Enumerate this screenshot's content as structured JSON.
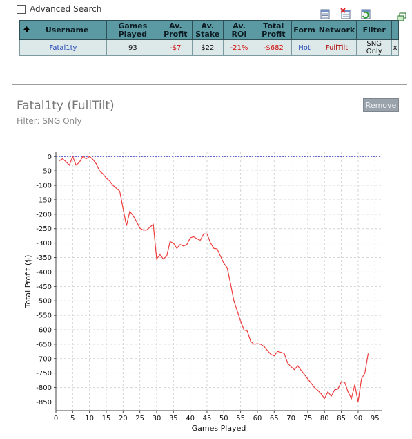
{
  "advanced_search": {
    "label": "Advanced Search",
    "checked": false
  },
  "toolbar": {
    "icons": [
      "export-icon",
      "delete-icon",
      "refresh-icon",
      "popout-icon"
    ]
  },
  "table": {
    "headers": {
      "username": "Username",
      "games_played": "Games Played",
      "av_profit": "Av. Profit",
      "av_stake": "Av. Stake",
      "av_roi": "Av. ROI",
      "total_profit": "Total Profit",
      "form": "Form",
      "network": "Network",
      "filter": "Filter"
    },
    "rows": [
      {
        "username": "Fatal1ty",
        "games_played": "93",
        "av_profit": "-$7",
        "av_stake": "$22",
        "av_roi": "-21%",
        "total_profit": "-$682",
        "form": "Hot",
        "network": "FullTilt",
        "filter": "SNG Only",
        "remove": "x"
      }
    ]
  },
  "player": {
    "title": "Fatal1ty (FullTilt)",
    "filter_text": "Filter: SNG Only",
    "remove_label": "Remove"
  },
  "colors": {
    "header_bg": "#5b9aa3",
    "row_bg": "#dde8e8",
    "line": "#ee3b3b",
    "zero_line": "#3a3ac8",
    "negative": "#d01010"
  },
  "chart_data": {
    "type": "line",
    "title": "",
    "xlabel": "Games Played",
    "ylabel": "Total Profit ($)",
    "xlim": [
      0,
      97
    ],
    "ylim": [
      -880,
      15
    ],
    "x_ticks": [
      0,
      5,
      10,
      15,
      20,
      25,
      30,
      35,
      40,
      45,
      50,
      55,
      60,
      65,
      70,
      75,
      80,
      85,
      90,
      95
    ],
    "y_ticks": [
      0,
      -50,
      -100,
      -150,
      -200,
      -250,
      -300,
      -350,
      -400,
      -450,
      -500,
      -550,
      -600,
      -650,
      -700,
      -750,
      -800,
      -850
    ],
    "grid": true,
    "reference_line_y": 0,
    "series": [
      {
        "x": [
          1,
          2,
          3,
          4,
          5,
          6,
          7,
          8,
          9,
          10,
          11,
          12,
          13,
          14,
          15,
          16,
          17,
          18,
          19,
          20,
          21,
          22,
          23,
          24,
          25,
          26,
          27,
          28,
          29,
          30,
          31,
          32,
          33,
          34,
          35,
          36,
          37,
          38,
          39,
          40,
          41,
          42,
          43,
          44,
          45,
          46,
          47,
          48,
          49,
          50,
          51,
          52,
          53,
          54,
          55,
          56,
          57,
          58,
          59,
          60,
          61,
          62,
          63,
          64,
          65,
          66,
          67,
          68,
          69,
          70,
          71,
          72,
          73,
          74,
          75,
          76,
          77,
          78,
          79,
          80,
          81,
          82,
          83,
          84,
          85,
          86,
          87,
          88,
          89,
          90,
          91,
          92,
          93
        ],
        "values": [
          -15,
          -8,
          -18,
          -30,
          0,
          -30,
          -20,
          0,
          -8,
          0,
          -10,
          -25,
          -50,
          -60,
          -75,
          -85,
          -100,
          -110,
          -120,
          -180,
          -240,
          -190,
          -205,
          -225,
          -248,
          -255,
          -255,
          -245,
          -235,
          -355,
          -340,
          -355,
          -345,
          -295,
          -300,
          -318,
          -305,
          -310,
          -305,
          -282,
          -278,
          -285,
          -290,
          -268,
          -268,
          -298,
          -318,
          -320,
          -345,
          -370,
          -385,
          -440,
          -500,
          -535,
          -570,
          -600,
          -605,
          -640,
          -650,
          -648,
          -650,
          -658,
          -672,
          -685,
          -690,
          -675,
          -678,
          -682,
          -715,
          -728,
          -738,
          -725,
          -740,
          -755,
          -770,
          -785,
          -800,
          -810,
          -822,
          -838,
          -815,
          -830,
          -808,
          -805,
          -780,
          -782,
          -815,
          -838,
          -790,
          -850,
          -770,
          -750,
          -682
        ]
      }
    ]
  }
}
